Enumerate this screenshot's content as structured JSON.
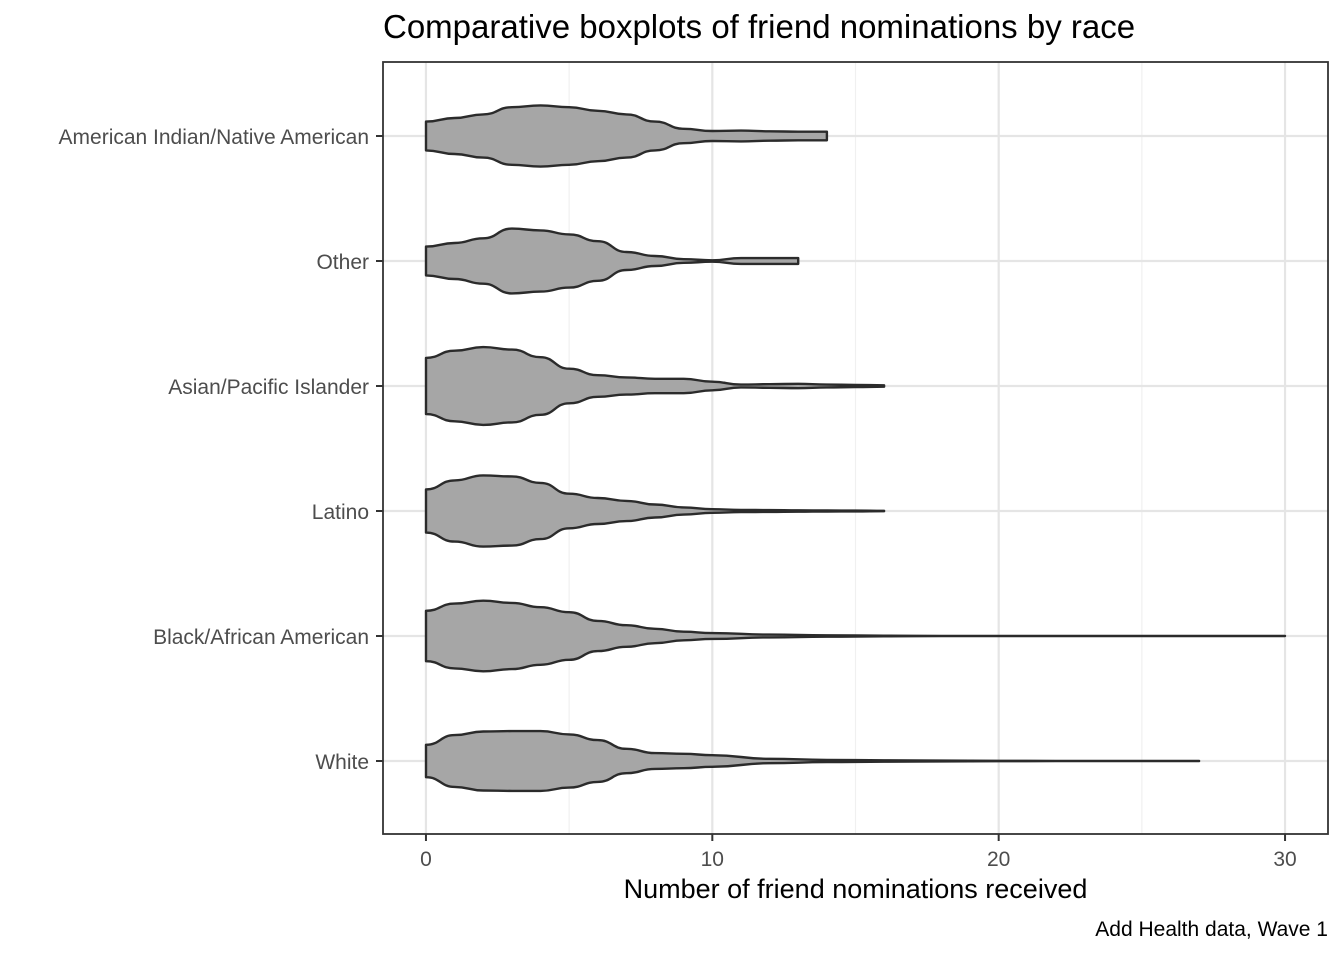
{
  "chart_data": {
    "type": "violin",
    "orientation": "horizontal",
    "title": "Comparative boxplots of friend nominations by race",
    "xlabel": "Number of friend nominations received",
    "ylabel": "",
    "caption": "Add Health data, Wave 1",
    "xlim": [
      -1.5,
      31.5
    ],
    "xticks": [
      0,
      10,
      20,
      30
    ],
    "grid": true,
    "legend": "none",
    "colors": {
      "fill": "#a6a6a6",
      "stroke": "#2b2b2b",
      "grid_major": "#e5e5e5",
      "grid_minor": "#f0f0f0",
      "panel_border": "#333333"
    },
    "categories": [
      "American Indian/Native American",
      "Other",
      "Asian/Pacific Islander",
      "Latino",
      "Black/African American",
      "White"
    ],
    "violins": [
      {
        "category": "American Indian/Native American",
        "min": 0,
        "max": 14,
        "density": [
          [
            0,
            0.4
          ],
          [
            1,
            0.5
          ],
          [
            2,
            0.6
          ],
          [
            3,
            0.8
          ],
          [
            4,
            0.85
          ],
          [
            5,
            0.8
          ],
          [
            6,
            0.7
          ],
          [
            7,
            0.6
          ],
          [
            8,
            0.4
          ],
          [
            9,
            0.2
          ],
          [
            10,
            0.14
          ],
          [
            11,
            0.15
          ],
          [
            12,
            0.13
          ],
          [
            13,
            0.12
          ],
          [
            14,
            0.12
          ]
        ]
      },
      {
        "category": "Other",
        "min": 0,
        "max": 13,
        "density": [
          [
            0,
            0.4
          ],
          [
            1,
            0.5
          ],
          [
            2,
            0.63
          ],
          [
            3,
            0.9
          ],
          [
            4,
            0.85
          ],
          [
            5,
            0.74
          ],
          [
            6,
            0.55
          ],
          [
            7,
            0.25
          ],
          [
            8,
            0.14
          ],
          [
            9,
            0.05
          ],
          [
            10,
            0.02
          ],
          [
            11,
            0.08
          ],
          [
            12,
            0.08
          ],
          [
            13,
            0.08
          ]
        ]
      },
      {
        "category": "Asian/Pacific Islander",
        "min": 0,
        "max": 16,
        "density": [
          [
            0,
            0.78
          ],
          [
            1,
            0.98
          ],
          [
            2,
            1.08
          ],
          [
            3,
            1.01
          ],
          [
            4,
            0.8
          ],
          [
            5,
            0.48
          ],
          [
            6,
            0.3
          ],
          [
            7,
            0.24
          ],
          [
            8,
            0.2
          ],
          [
            9,
            0.2
          ],
          [
            10,
            0.12
          ],
          [
            11,
            0.04
          ],
          [
            12,
            0.05
          ],
          [
            13,
            0.06
          ],
          [
            14,
            0.04
          ],
          [
            15,
            0.03
          ],
          [
            16,
            0.02
          ]
        ]
      },
      {
        "category": "Latino",
        "min": 0,
        "max": 16,
        "density": [
          [
            0,
            0.6
          ],
          [
            1,
            0.85
          ],
          [
            2,
            0.99
          ],
          [
            3,
            0.96
          ],
          [
            4,
            0.78
          ],
          [
            5,
            0.48
          ],
          [
            6,
            0.36
          ],
          [
            7,
            0.28
          ],
          [
            8,
            0.18
          ],
          [
            9,
            0.1
          ],
          [
            10,
            0.05
          ],
          [
            11,
            0.03
          ],
          [
            12,
            0.025
          ],
          [
            13,
            0.02
          ],
          [
            14,
            0.015
          ],
          [
            15,
            0.01
          ],
          [
            16,
            0.005
          ]
        ]
      },
      {
        "category": "Black/African American",
        "min": 0,
        "max": 30,
        "density": [
          [
            0,
            0.7
          ],
          [
            1,
            0.9
          ],
          [
            2,
            0.98
          ],
          [
            3,
            0.92
          ],
          [
            4,
            0.8
          ],
          [
            5,
            0.66
          ],
          [
            6,
            0.42
          ],
          [
            7,
            0.3
          ],
          [
            8,
            0.2
          ],
          [
            9,
            0.12
          ],
          [
            10,
            0.08
          ],
          [
            12,
            0.04
          ],
          [
            14,
            0.02
          ],
          [
            16,
            0.008
          ],
          [
            18,
            0.004
          ],
          [
            20,
            0.002
          ],
          [
            25,
            0.001
          ],
          [
            30,
            0.001
          ]
        ]
      },
      {
        "category": "White",
        "min": 0,
        "max": 27,
        "density": [
          [
            0,
            0.45
          ],
          [
            1,
            0.72
          ],
          [
            2,
            0.82
          ],
          [
            3,
            0.83
          ],
          [
            4,
            0.83
          ],
          [
            5,
            0.74
          ],
          [
            6,
            0.58
          ],
          [
            7,
            0.34
          ],
          [
            8,
            0.22
          ],
          [
            9,
            0.2
          ],
          [
            10,
            0.16
          ],
          [
            12,
            0.06
          ],
          [
            14,
            0.03
          ],
          [
            16,
            0.02
          ],
          [
            18,
            0.01
          ],
          [
            20,
            0.005
          ],
          [
            22,
            0.003
          ],
          [
            25,
            0.002
          ],
          [
            27,
            0.002
          ]
        ]
      }
    ]
  }
}
